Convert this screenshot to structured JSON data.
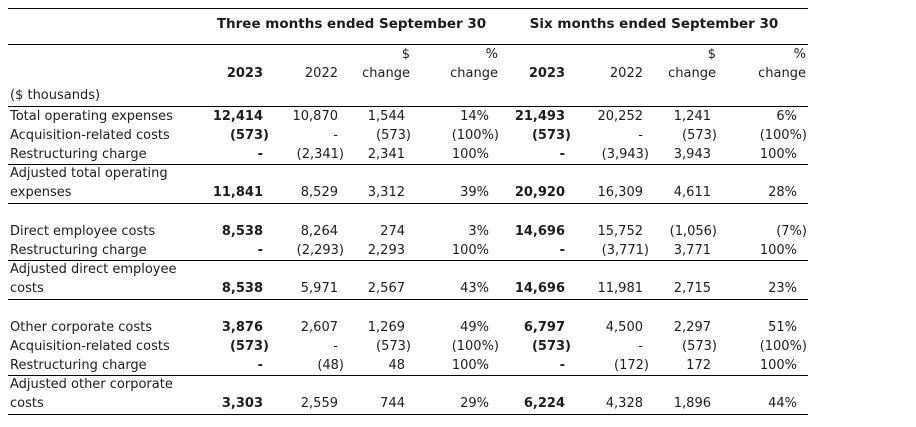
{
  "table": {
    "unit_note": "($ thousands)",
    "period_groups": [
      {
        "label": "Three months ended September 30"
      },
      {
        "label": "Six months ended September 30"
      }
    ],
    "column_headers": {
      "dollar_sign": "$",
      "percent_sign": "%",
      "year_current": "2023",
      "year_prior": "2022",
      "change": "change"
    },
    "sections": [
      {
        "rows": [
          {
            "label": "Total operating expenses",
            "values": [
              "12,414",
              "10,870",
              "1,544",
              "14%",
              "21,493",
              "20,252",
              "1,241",
              "6%"
            ]
          },
          {
            "label": "Acquisition-related costs",
            "values": [
              "(573)",
              "-",
              "(573)",
              "(100%)",
              "(573)",
              "-",
              "(573)",
              "(100%)"
            ]
          },
          {
            "label": "Restructuring charge",
            "values": [
              "-",
              "(2,341)",
              "2,341",
              "100%",
              "-",
              "(3,943)",
              "3,943",
              "100%"
            ]
          }
        ],
        "total_row": {
          "label": "Adjusted total operating expenses",
          "values": [
            "11,841",
            "8,529",
            "3,312",
            "39%",
            "20,920",
            "16,309",
            "4,611",
            "28%"
          ]
        }
      },
      {
        "rows": [
          {
            "label": "Direct employee costs",
            "values": [
              "8,538",
              "8,264",
              "274",
              "3%",
              "14,696",
              "15,752",
              "(1,056)",
              "(7%)"
            ]
          },
          {
            "label": "Restructuring charge",
            "values": [
              "-",
              "(2,293)",
              "2,293",
              "100%",
              "-",
              "(3,771)",
              "3,771",
              "100%"
            ]
          }
        ],
        "total_row": {
          "label": "Adjusted direct employee costs",
          "values": [
            "8,538",
            "5,971",
            "2,567",
            "43%",
            "14,696",
            "11,981",
            "2,715",
            "23%"
          ]
        }
      },
      {
        "rows": [
          {
            "label": "Other corporate costs",
            "values": [
              "3,876",
              "2,607",
              "1,269",
              "49%",
              "6,797",
              "4,500",
              "2,297",
              "51%"
            ]
          },
          {
            "label": "Acquisition-related costs",
            "values": [
              "(573)",
              "-",
              "(573)",
              "(100%)",
              "(573)",
              "-",
              "(573)",
              "(100%)"
            ]
          },
          {
            "label": "Restructuring charge",
            "values": [
              "-",
              "(48)",
              "48",
              "100%",
              "-",
              "(172)",
              "172",
              "100%"
            ]
          }
        ],
        "total_row": {
          "label": "Adjusted other corporate costs",
          "values": [
            "3,303",
            "2,559",
            "744",
            "29%",
            "6,224",
            "4,328",
            "1,896",
            "44%"
          ]
        }
      }
    ]
  },
  "colors": {
    "text": "#1c1c1c",
    "rule": "#000000",
    "background": "#ffffff"
  }
}
